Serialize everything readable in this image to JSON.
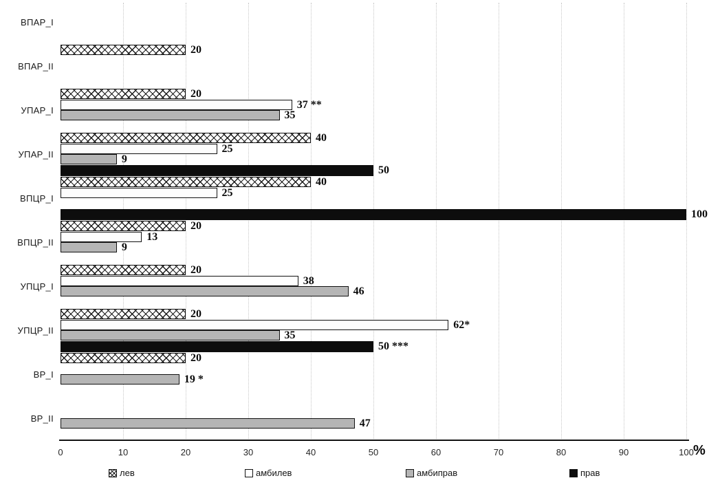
{
  "chart_data": {
    "type": "bar",
    "orientation": "horizontal",
    "title": "",
    "xlabel": "",
    "ylabel": "",
    "x_unit_label": "%",
    "xlim": [
      0,
      100
    ],
    "x_ticks": [
      0,
      10,
      20,
      30,
      40,
      50,
      60,
      70,
      80,
      90,
      100
    ],
    "grid": "vertical-dotted",
    "legend_position": "bottom",
    "series_order": [
      "лев",
      "амбилев",
      "амбиправ",
      "прав"
    ],
    "legend": [
      {
        "name": "лев",
        "swatch": "crosshatch-pattern"
      },
      {
        "name": "амбилев",
        "swatch": "white"
      },
      {
        "name": "амбиправ",
        "swatch": "gray"
      },
      {
        "name": "прав",
        "swatch": "black"
      }
    ],
    "colors": {
      "lev_fill": "#ffffff",
      "ambilev_fill": "#fdfdfd",
      "ambiprav_fill": "#b5b5b5",
      "prav_fill": "#0d0d0d",
      "bar_border": "#111111",
      "gridline": "#c6c6c6"
    },
    "rows": [
      {
        "label": "ВПАР_I",
        "bars": []
      },
      {
        "label": "ВПАР_II",
        "bars": [
          {
            "series": "лев",
            "value": 20,
            "label": "20"
          }
        ]
      },
      {
        "label": "УПАР_I",
        "bars": [
          {
            "series": "лев",
            "value": 20,
            "label": "20"
          },
          {
            "series": "амбилев",
            "value": 37,
            "label": "37 **"
          },
          {
            "series": "амбиправ",
            "value": 35,
            "label": "35"
          }
        ]
      },
      {
        "label": "УПАР_II",
        "bars": [
          {
            "series": "лев",
            "value": 40,
            "label": "40"
          },
          {
            "series": "амбилев",
            "value": 25,
            "label": "25"
          },
          {
            "series": "амбиправ",
            "value": 9,
            "label": "9"
          },
          {
            "series": "прав",
            "value": 50,
            "label": "50"
          }
        ]
      },
      {
        "label": "ВПЦР_I",
        "bars": [
          {
            "series": "лев",
            "value": 40,
            "label": "40"
          },
          {
            "series": "амбилев",
            "value": 25,
            "label": "25"
          },
          {
            "series": "прав",
            "value": 100,
            "label": "100"
          }
        ]
      },
      {
        "label": "ВПЦР_II",
        "bars": [
          {
            "series": "лев",
            "value": 20,
            "label": "20"
          },
          {
            "series": "амбилев",
            "value": 13,
            "label": "13"
          },
          {
            "series": "амбиправ",
            "value": 9,
            "label": "9"
          }
        ]
      },
      {
        "label": "УПЦР_I",
        "bars": [
          {
            "series": "лев",
            "value": 20,
            "label": "20"
          },
          {
            "series": "амбилев",
            "value": 38,
            "label": "38"
          },
          {
            "series": "амбиправ",
            "value": 46,
            "label": "46"
          }
        ]
      },
      {
        "label": "УПЦР_II",
        "bars": [
          {
            "series": "лев",
            "value": 20,
            "label": "20"
          },
          {
            "series": "амбилев",
            "value": 62,
            "label": "62*"
          },
          {
            "series": "амбиправ",
            "value": 35,
            "label": "35"
          },
          {
            "series": "прав",
            "value": 50,
            "label": "50 ***"
          }
        ]
      },
      {
        "label": "ВР_I",
        "bars": [
          {
            "series": "лев",
            "value": 20,
            "label": "20"
          },
          {
            "series": "амбиправ",
            "value": 19,
            "label": "19 *"
          }
        ]
      },
      {
        "label": "ВР_II",
        "bars": [
          {
            "series": "амбиправ",
            "value": 47,
            "label": "47"
          }
        ]
      }
    ]
  }
}
